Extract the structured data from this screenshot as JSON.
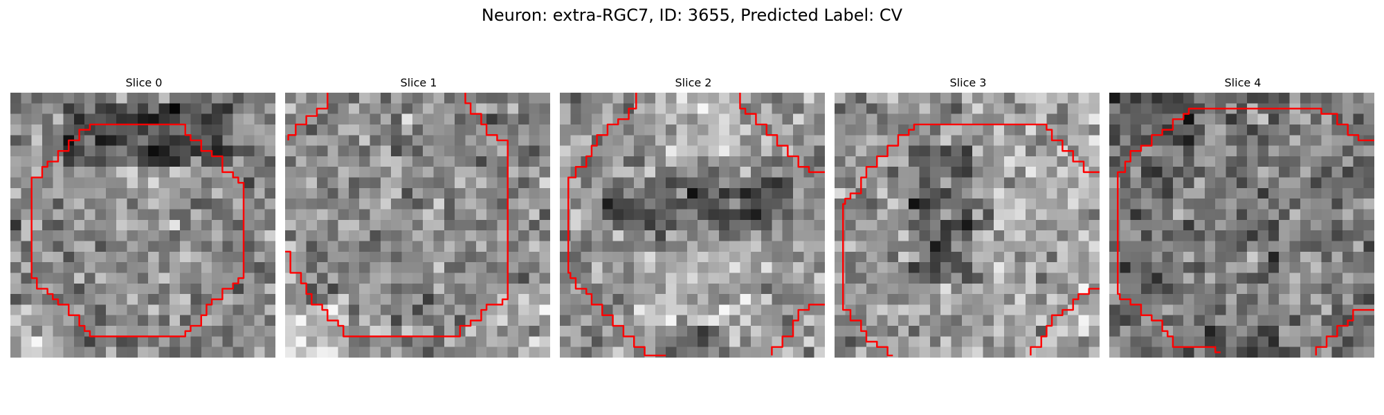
{
  "figure": {
    "title": "Neuron: extra-RGC7, ID: 3655, Predicted Label: CV"
  },
  "contour_color": "#ff0000",
  "panels": [
    {
      "label": "Slice 0",
      "grayscale_mean": 0.52,
      "pattern": "dark upper band, lighter centre, light lower-left corner",
      "contour": "closed",
      "seed": 11
    },
    {
      "label": "Slice 1",
      "grayscale_mean": 0.55,
      "pattern": "mid-grey noisy field, bright lower-left corner",
      "contour": "open-top",
      "seed": 23
    },
    {
      "label": "Slice 2",
      "grayscale_mean": 0.58,
      "pattern": "dark horizontal band across the middle, bright areas above and below",
      "contour": "open-top-bottom",
      "seed": 37
    },
    {
      "label": "Slice 3",
      "grayscale_mean": 0.57,
      "pattern": "darker vertical region left of centre, lighter right side",
      "contour": "open-bottom",
      "seed": 41
    },
    {
      "label": "Slice 4",
      "grayscale_mean": 0.48,
      "pattern": "dense noisy texture with scattered dark pixels",
      "contour": "open-bottom",
      "seed": 53
    }
  ]
}
